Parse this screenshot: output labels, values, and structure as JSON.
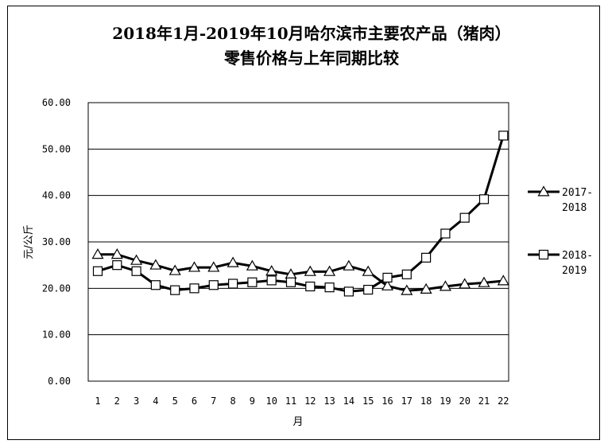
{
  "chart_data": {
    "type": "line",
    "title_line1": "2018年1月-2019年10月哈尔滨市主要农产品（猪肉）",
    "title_line2": "零售价格与上年同期比较",
    "xlabel": "月",
    "ylabel": "元/公斤",
    "ylim": [
      0,
      60
    ],
    "yticks": [
      "0.00",
      "10.00",
      "20.00",
      "30.00",
      "40.00",
      "50.00",
      "60.00"
    ],
    "categories": [
      "1",
      "2",
      "3",
      "4",
      "5",
      "6",
      "7",
      "8",
      "9",
      "10",
      "11",
      "12",
      "13",
      "14",
      "15",
      "16",
      "17",
      "18",
      "19",
      "20",
      "21",
      "22"
    ],
    "grid": "horizontal",
    "legend_position": "right",
    "series": [
      {
        "name_line1": "2017-",
        "name_line2": "2018",
        "marker": "triangle",
        "values": [
          27.3,
          27.3,
          26.0,
          25.0,
          23.8,
          24.5,
          24.5,
          25.5,
          24.8,
          23.7,
          23.0,
          23.6,
          23.6,
          24.8,
          23.6,
          20.5,
          19.5,
          19.8,
          20.4,
          20.9,
          21.2,
          21.6
        ]
      },
      {
        "name_line1": "2018-",
        "name_line2": "2019",
        "marker": "square",
        "values": [
          23.7,
          25.0,
          23.7,
          20.7,
          19.6,
          20.0,
          20.7,
          21.0,
          21.3,
          21.7,
          21.3,
          20.4,
          20.2,
          19.3,
          19.7,
          22.3,
          23.0,
          26.6,
          31.8,
          35.2,
          39.2,
          52.9
        ]
      }
    ],
    "colors": {
      "line": "#000000",
      "marker_fill": "#ffffff",
      "grid": "#000000"
    }
  }
}
